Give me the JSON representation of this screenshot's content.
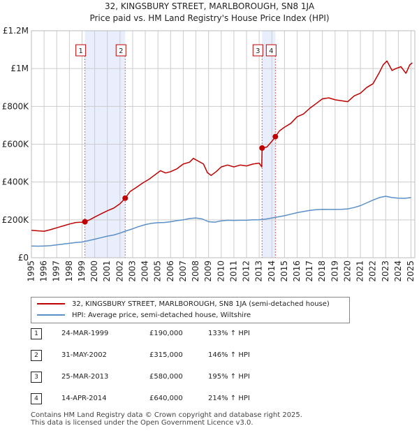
{
  "title_line1": "32, KINGSBURY STREET, MARLBOROUGH, SN8 1JA",
  "title_line2": "Price paid vs. HM Land Registry's House Price Index (HPI)",
  "colors": {
    "property": "#c00000",
    "hpi": "#5b8fc7",
    "band": "#e8eefb",
    "grid": "#cccccc",
    "marker_line": "#e06060"
  },
  "legend": {
    "property_label": "32, KINGSBURY STREET, MARLBOROUGH, SN8 1JA (semi-detached house)",
    "hpi_label": "HPI: Average price, semi-detached house, Wiltshire"
  },
  "sales": [
    {
      "num": "1",
      "date": "24-MAR-1999",
      "price": "£190,000",
      "hpi": "133% ↑ HPI"
    },
    {
      "num": "2",
      "date": "31-MAY-2002",
      "price": "£315,000",
      "hpi": "146% ↑ HPI"
    },
    {
      "num": "3",
      "date": "25-MAR-2013",
      "price": "£580,000",
      "hpi": "195% ↑ HPI"
    },
    {
      "num": "4",
      "date": "14-APR-2014",
      "price": "£640,000",
      "hpi": "214% ↑ HPI"
    }
  ],
  "footer_line1": "Contains HM Land Registry data © Crown copyright and database right 2025.",
  "footer_line2": "This data is licensed under the Open Government Licence v3.0.",
  "chart_data": {
    "type": "line",
    "title": "32, KINGSBURY STREET, MARLBOROUGH, SN8 1JA — Price paid vs. HM Land Registry's House Price Index (HPI)",
    "xlabel": "",
    "ylabel": "",
    "xlim": [
      1995,
      2025.3
    ],
    "ylim": [
      0,
      1200000
    ],
    "y_ticks": [
      0,
      200000,
      400000,
      600000,
      800000,
      1000000,
      1200000
    ],
    "y_tick_labels": [
      "£0",
      "£200K",
      "£400K",
      "£600K",
      "£800K",
      "£1M",
      "£1.2M"
    ],
    "x_ticks": [
      1995,
      1996,
      1997,
      1998,
      1999,
      2000,
      2001,
      2002,
      2003,
      2004,
      2005,
      2006,
      2007,
      2008,
      2009,
      2010,
      2011,
      2012,
      2013,
      2014,
      2015,
      2016,
      2017,
      2018,
      2019,
      2020,
      2021,
      2022,
      2023,
      2024,
      2025
    ],
    "grid": true,
    "series": [
      {
        "name": "32, KINGSBURY STREET, MARLBOROUGH, SN8 1JA (semi-detached house)",
        "x": [
          1995.0,
          1995.5,
          1996.0,
          1996.5,
          1997.0,
          1997.5,
          1998.0,
          1998.5,
          1999.0,
          1999.23,
          1999.6,
          2000.0,
          2000.5,
          2001.0,
          2001.5,
          2002.0,
          2002.41,
          2002.8,
          2003.3,
          2003.8,
          2004.3,
          2004.8,
          2005.2,
          2005.6,
          2006.0,
          2006.5,
          2007.0,
          2007.5,
          2007.8,
          2008.2,
          2008.6,
          2008.9,
          2009.2,
          2009.6,
          2010.0,
          2010.5,
          2011.0,
          2011.5,
          2012.0,
          2012.5,
          2013.0,
          2013.2,
          2013.23,
          2013.6,
          2014.0,
          2014.28,
          2014.6,
          2015.0,
          2015.5,
          2016.0,
          2016.5,
          2017.0,
          2017.5,
          2018.0,
          2018.5,
          2019.0,
          2019.5,
          2020.0,
          2020.5,
          2021.0,
          2021.5,
          2022.0,
          2022.5,
          2022.8,
          2023.1,
          2023.5,
          2023.8,
          2024.2,
          2024.6,
          2024.9,
          2025.1
        ],
        "values": [
          145000,
          142000,
          140000,
          148000,
          158000,
          168000,
          178000,
          186000,
          188000,
          190000,
          200000,
          215000,
          232000,
          248000,
          262000,
          285000,
          315000,
          350000,
          372000,
          395000,
          415000,
          440000,
          460000,
          448000,
          455000,
          470000,
          495000,
          505000,
          525000,
          510000,
          495000,
          450000,
          435000,
          455000,
          480000,
          490000,
          480000,
          490000,
          485000,
          495000,
          500000,
          480000,
          580000,
          585000,
          615000,
          640000,
          670000,
          690000,
          710000,
          745000,
          760000,
          790000,
          815000,
          840000,
          845000,
          835000,
          830000,
          825000,
          855000,
          870000,
          900000,
          920000,
          980000,
          1020000,
          1040000,
          990000,
          1000000,
          1010000,
          975000,
          1020000,
          1030000
        ]
      },
      {
        "name": "HPI: Average price, semi-detached house, Wiltshire",
        "x": [
          1995.0,
          1995.5,
          1996.0,
          1996.5,
          1997.0,
          1997.5,
          1998.0,
          1998.5,
          1999.0,
          1999.5,
          2000.0,
          2000.5,
          2001.0,
          2001.5,
          2002.0,
          2002.5,
          2003.0,
          2003.5,
          2004.0,
          2004.5,
          2005.0,
          2005.5,
          2006.0,
          2006.5,
          2007.0,
          2007.5,
          2008.0,
          2008.5,
          2009.0,
          2009.5,
          2010.0,
          2010.5,
          2011.0,
          2011.5,
          2012.0,
          2012.5,
          2013.0,
          2013.5,
          2014.0,
          2014.5,
          2015.0,
          2015.5,
          2016.0,
          2016.5,
          2017.0,
          2017.5,
          2018.0,
          2018.5,
          2019.0,
          2019.5,
          2020.0,
          2020.5,
          2021.0,
          2021.5,
          2022.0,
          2022.5,
          2023.0,
          2023.5,
          2024.0,
          2024.5,
          2025.0
        ],
        "values": [
          62000,
          61000,
          62000,
          64000,
          68000,
          72000,
          76000,
          80000,
          83000,
          90000,
          98000,
          106000,
          114000,
          120000,
          130000,
          142000,
          153000,
          165000,
          175000,
          182000,
          185000,
          186000,
          190000,
          196000,
          200000,
          207000,
          210000,
          205000,
          190000,
          188000,
          195000,
          198000,
          197000,
          198000,
          198000,
          200000,
          201000,
          204000,
          210000,
          216000,
          222000,
          230000,
          238000,
          244000,
          250000,
          254000,
          256000,
          255000,
          255000,
          256000,
          258000,
          265000,
          275000,
          290000,
          305000,
          318000,
          325000,
          318000,
          315000,
          314000,
          318000
        ]
      }
    ],
    "sale_markers": [
      {
        "label": "1",
        "x": 1999.23,
        "y": 190000
      },
      {
        "label": "2",
        "x": 2002.41,
        "y": 315000
      },
      {
        "label": "3",
        "x": 2013.23,
        "y": 580000
      },
      {
        "label": "4",
        "x": 2014.28,
        "y": 640000
      }
    ],
    "shaded_periods": [
      [
        1999.23,
        2002.41
      ],
      [
        2013.23,
        2014.28
      ]
    ]
  }
}
